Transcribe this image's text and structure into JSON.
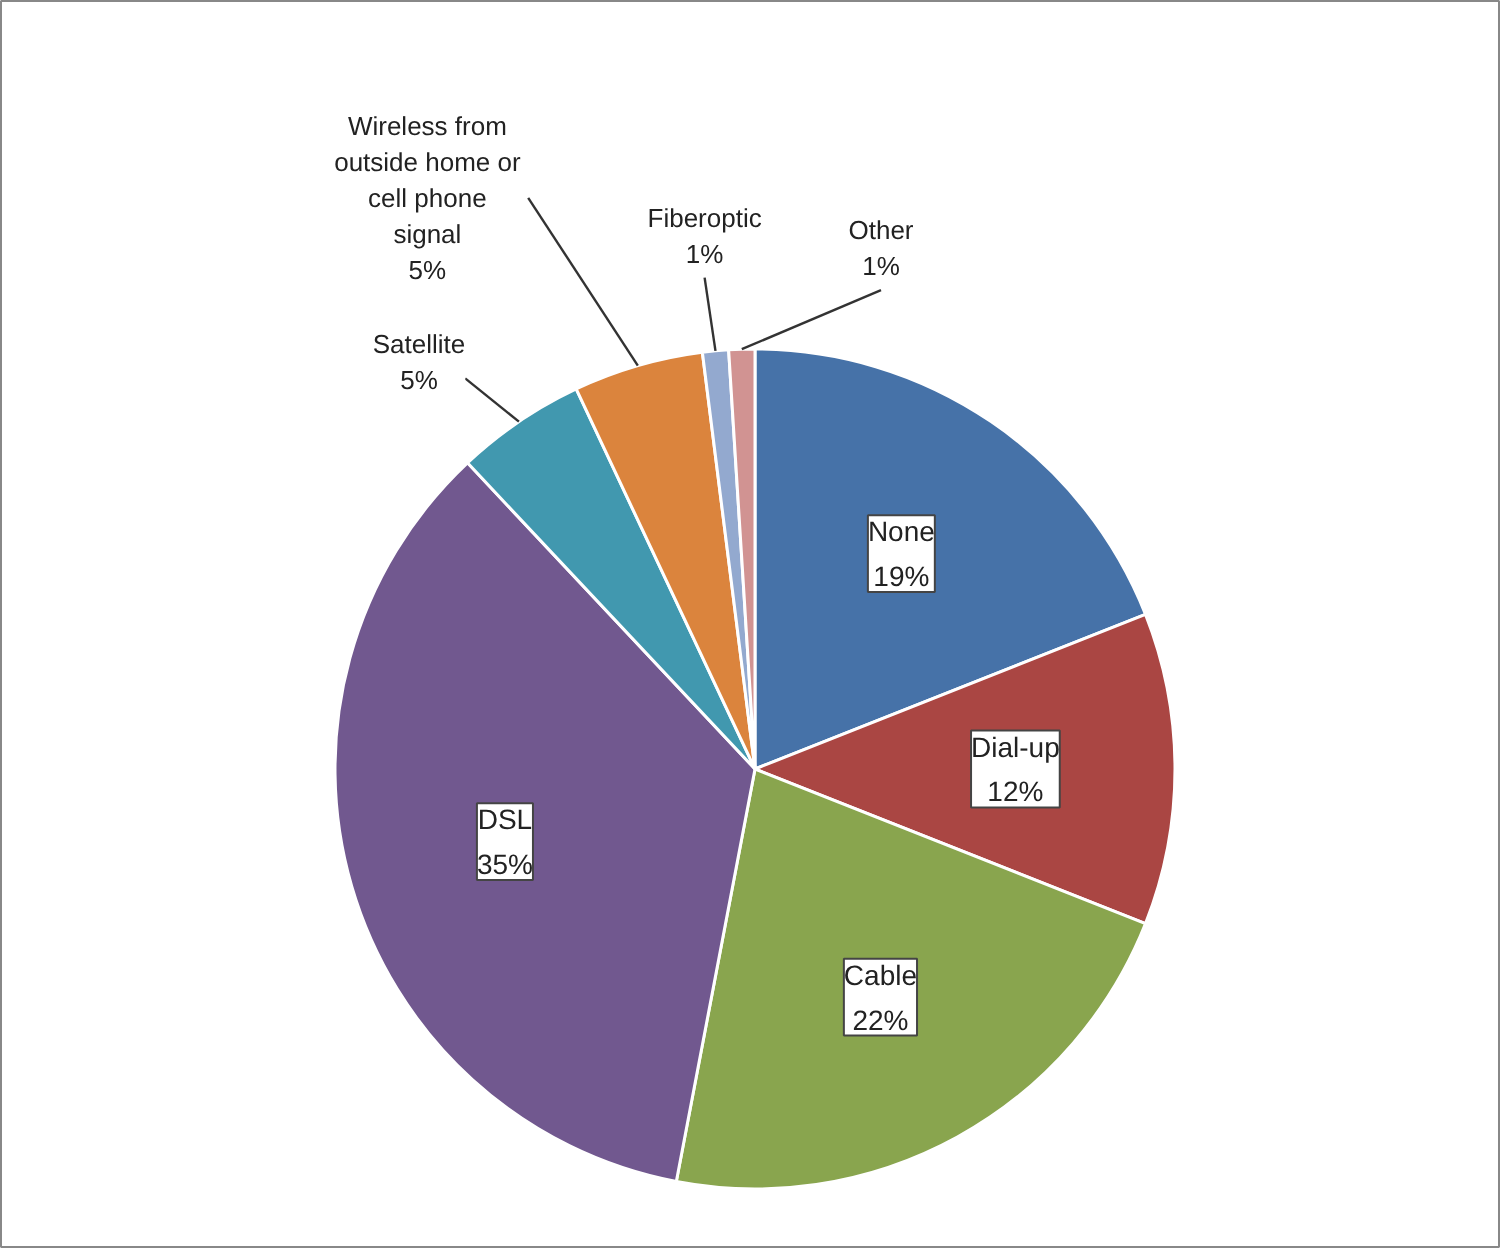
{
  "chart_data": {
    "type": "pie",
    "categories": [
      "None",
      "Dial-up",
      "Cable",
      "DSL",
      "Satellite",
      "Wireless from outside home or cell phone signal",
      "Fiberoptic",
      "Other"
    ],
    "values": [
      19,
      12,
      22,
      35,
      5,
      5,
      1,
      1
    ],
    "colors": [
      "#4672a8",
      "#aa4643",
      "#89a54e",
      "#71588f",
      "#4198af",
      "#db843d",
      "#93a9cf",
      "#d19392"
    ],
    "value_labels": [
      "19%",
      "12%",
      "22%",
      "35%",
      "5%",
      "5%",
      "1%",
      "1%"
    ]
  }
}
